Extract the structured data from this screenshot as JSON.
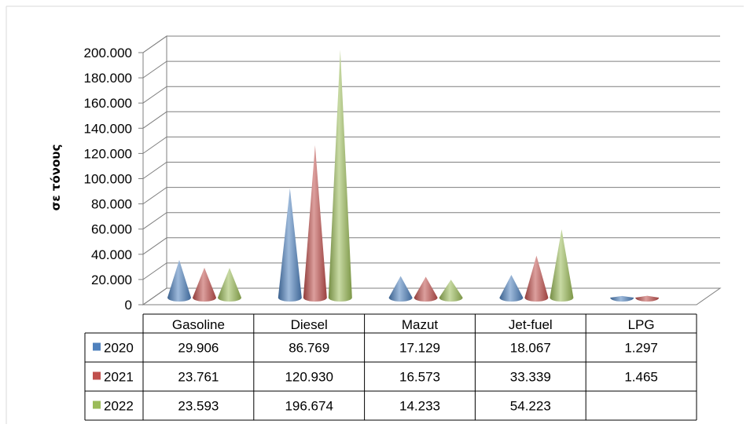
{
  "chart_data": {
    "type": "bar",
    "bar_shape": "cone",
    "three_d": true,
    "categories": [
      "Gasoline",
      "Diesel",
      "Mazut",
      "Jet-fuel",
      "LPG"
    ],
    "series": [
      {
        "name": "2020",
        "color": "#4F81BD",
        "values": [
          29906,
          86769,
          17129,
          18067,
          1297
        ],
        "labels": [
          "29.906",
          "86.769",
          "17.129",
          "18.067",
          "1.297"
        ]
      },
      {
        "name": "2021",
        "color": "#C0504D",
        "values": [
          23761,
          120930,
          16573,
          33339,
          1465
        ],
        "labels": [
          "23.761",
          "120.930",
          "16.573",
          "33.339",
          "1.465"
        ]
      },
      {
        "name": "2022",
        "color": "#9BBB59",
        "values": [
          23593,
          196674,
          14233,
          54223,
          null
        ],
        "labels": [
          "23.593",
          "196.674",
          "14.233",
          "54.223",
          ""
        ]
      }
    ],
    "ylabel": "σε τόνους",
    "ylim": [
      0,
      200000
    ],
    "yticks": [
      0,
      20000,
      40000,
      60000,
      80000,
      100000,
      120000,
      140000,
      160000,
      180000,
      200000
    ],
    "ytick_labels": [
      "0",
      "20.000",
      "40.000",
      "60.000",
      "80.000",
      "100.000",
      "120.000",
      "140.000",
      "160.000",
      "180.000",
      "200.000"
    ],
    "grid": true,
    "legend": "data-table"
  }
}
